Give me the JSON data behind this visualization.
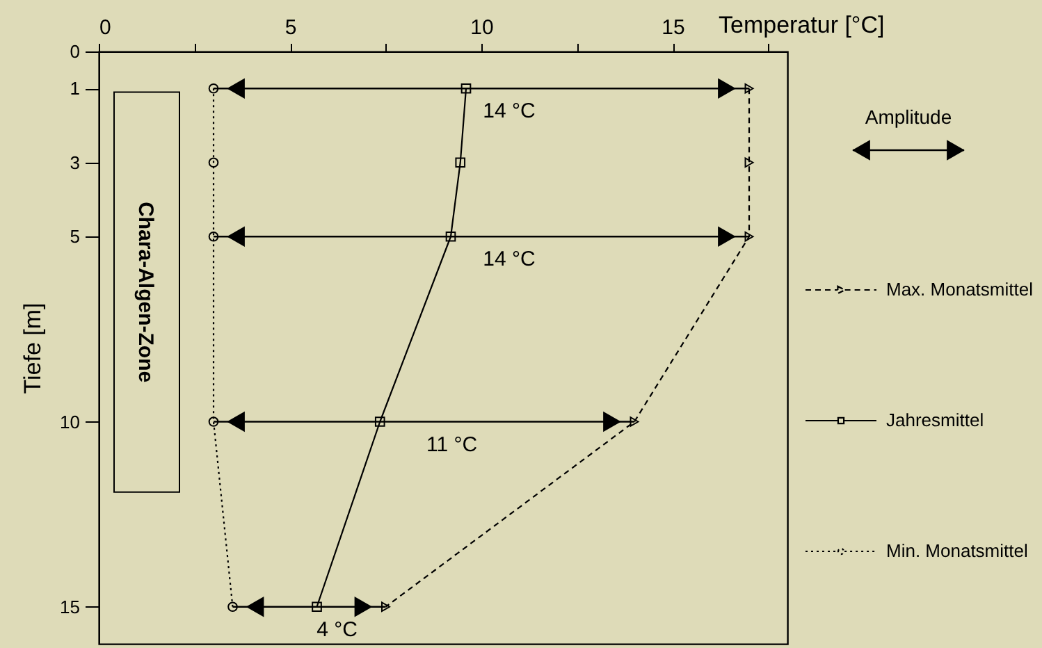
{
  "chart_data": {
    "type": "line",
    "orientation": "horizontal",
    "xlabel": "Temperatur [°C]",
    "ylabel": "Tiefe [m]",
    "xlim": [
      0,
      18
    ],
    "xticks": [
      0,
      {
        "value": 2.5,
        "label": null
      },
      5,
      {
        "value": 7.5,
        "label": null
      },
      10,
      {
        "value": 12.5,
        "label": null
      },
      15,
      {
        "value": 17.5,
        "label": null
      }
    ],
    "ylim": [
      16,
      0
    ],
    "yticks": [
      0,
      1,
      3,
      5,
      10,
      15
    ],
    "legend": "right",
    "series": [
      {
        "name": "Max. Monatsmittel",
        "color": "#000000",
        "marker": "triangle",
        "line_style": "dashed",
        "x": [
          1,
          3,
          5,
          10,
          15
        ],
        "values": [
          17,
          17,
          17,
          14,
          7.5
        ]
      },
      {
        "name": "Jahresmittel",
        "color": "#000000",
        "marker": "square",
        "line_style": "solid",
        "x": [
          1,
          3,
          5,
          10,
          15
        ],
        "values": [
          9.6,
          9.45,
          9.2,
          7.35,
          5.7
        ]
      },
      {
        "name": "Min. Monatsmittel",
        "color": "#000000",
        "marker": "circle",
        "line_style": "dotted",
        "x": [
          1,
          3,
          5,
          10,
          15
        ],
        "values": [
          3,
          3,
          3,
          3,
          3.5
        ]
      }
    ],
    "annotations": [
      "Amplitude"
    ],
    "ref_lines": [
      {
        "axis": "y",
        "value": 1,
        "label": "14 °C"
      },
      {
        "axis": "y",
        "value": 5,
        "label": "14 °C"
      },
      {
        "axis": "y",
        "value": 10,
        "label": "11 °C"
      },
      {
        "axis": "y",
        "value": 15,
        "label": "4 °C"
      }
    ],
    "bands": [
      {
        "axis": "y",
        "from": 1.1,
        "to": 11.9,
        "label": "Chara-Algen-Zone"
      }
    ]
  }
}
